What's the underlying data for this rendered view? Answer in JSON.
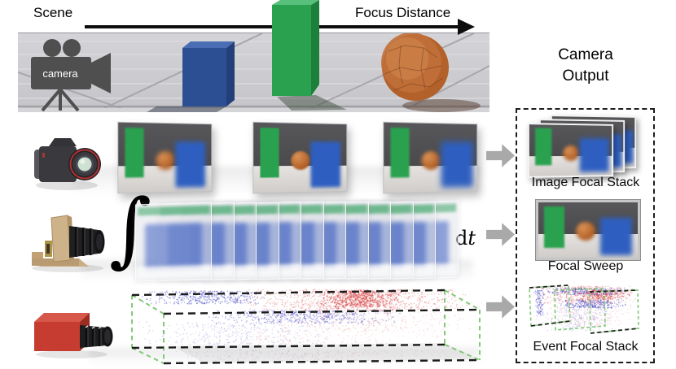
{
  "figure": {
    "scene": {
      "label": "Scene",
      "axis_label": "Focus Distance",
      "camera_badge": "camera"
    },
    "sweep_row": {
      "integral": "∫",
      "dt_d": "d",
      "dt_t": "t"
    },
    "output_panel": {
      "title_line1": "Camera",
      "title_line2": "Output",
      "items": [
        {
          "label": "Image Focal Stack"
        },
        {
          "label": "Focal Sweep"
        },
        {
          "label": "Event Focal Stack"
        }
      ]
    }
  },
  "colors": {
    "green": "#2aa14e",
    "green_light": "#58c07c",
    "green_dark": "#1e7f3b",
    "blue": "#2c4f93",
    "blue_top": "#4a6db3",
    "blue_dark": "#233f79",
    "blue_bright": "#2e5fc0",
    "orange": "#c4672e",
    "red_camera": "#c63c31",
    "event_red": "#d43c3c",
    "event_blue": "#4444c8",
    "arrow_gray": "#a9a9a9",
    "dash_green": "#82c878",
    "wood": "#c9ad85"
  },
  "sweep_stack": {
    "frame_count": 12,
    "step_x": 27.5
  },
  "event_volume": {
    "clusters": [
      {
        "color": "event_red",
        "x": [
          140,
          430
        ],
        "y": [
          8,
          34
        ],
        "count": 1000,
        "alpha": 0.28,
        "r": 0.8
      },
      {
        "color": "event_red",
        "x": [
          240,
          340
        ],
        "y": [
          10,
          30
        ],
        "count": 450,
        "alpha": 0.45,
        "r": 0.9
      },
      {
        "color": "event_blue",
        "x": [
          18,
          180
        ],
        "y": [
          10,
          26
        ],
        "count": 420,
        "alpha": 0.42,
        "r": 0.8
      },
      {
        "color": "event_blue",
        "x": [
          100,
          340
        ],
        "y": [
          34,
          50
        ],
        "count": 520,
        "alpha": 0.38,
        "r": 0.8
      },
      {
        "color": "event_red",
        "x": [
          150,
          435
        ],
        "y": [
          34,
          60
        ],
        "count": 380,
        "alpha": 0.16,
        "r": 0.8
      },
      {
        "color": "event_blue",
        "x": [
          12,
          260
        ],
        "y": [
          48,
          76
        ],
        "count": 300,
        "alpha": 0.2,
        "r": 0.8
      },
      {
        "color": "event_red",
        "x": [
          40,
          430
        ],
        "y": [
          58,
          76
        ],
        "count": 220,
        "alpha": 0.12,
        "r": 0.8
      },
      {
        "color": "event_red",
        "x": [
          60,
          430
        ],
        "y": [
          82,
          96
        ],
        "count": 150,
        "alpha": 0.12,
        "r": 0.8
      },
      {
        "color": "event_blue",
        "x": [
          60,
          280
        ],
        "y": [
          82,
          96
        ],
        "count": 90,
        "alpha": 0.12,
        "r": 0.8
      }
    ]
  },
  "event_thumb": {
    "clusters": [
      {
        "color": "event_blue",
        "x": [
          8,
          128
        ],
        "y": [
          5,
          14
        ],
        "count": 300,
        "alpha": 0.5,
        "r": 0.7
      },
      {
        "color": "event_red",
        "x": [
          6,
          138
        ],
        "y": [
          3,
          24
        ],
        "count": 450,
        "alpha": 0.3,
        "r": 0.7
      },
      {
        "color": "event_red",
        "x": [
          60,
          130
        ],
        "y": [
          8,
          20
        ],
        "count": 200,
        "alpha": 0.45,
        "r": 0.8
      },
      {
        "color": "event_blue",
        "x": [
          36,
          126
        ],
        "y": [
          20,
          30
        ],
        "count": 260,
        "alpha": 0.5,
        "r": 0.7
      },
      {
        "color": "event_blue",
        "x": [
          10,
          22
        ],
        "y": [
          8,
          40
        ],
        "count": 120,
        "alpha": 0.4,
        "r": 0.7
      },
      {
        "color": "event_red",
        "x": [
          10,
          138
        ],
        "y": [
          18,
          52
        ],
        "count": 320,
        "alpha": 0.18,
        "r": 0.7
      },
      {
        "color": "event_blue",
        "x": [
          20,
          110
        ],
        "y": [
          28,
          58
        ],
        "count": 200,
        "alpha": 0.25,
        "r": 0.7
      }
    ]
  }
}
